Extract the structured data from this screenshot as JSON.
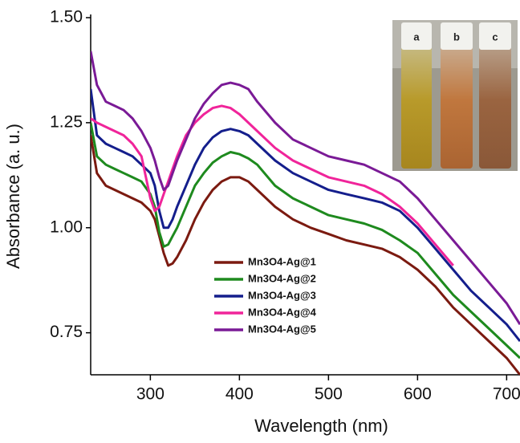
{
  "chart_data": {
    "type": "line",
    "x_label": "Wavelength (nm)",
    "y_label": "Absorbance (a. u.)",
    "xlim": [
      233,
      715
    ],
    "ylim": [
      0.65,
      1.5
    ],
    "xticks": [
      300,
      400,
      500,
      600,
      700
    ],
    "yticks": [
      {
        "value": 0.75,
        "label": "0.75"
      },
      {
        "value": 1,
        "label": "1.00"
      },
      {
        "value": 1.25,
        "label": "1.25"
      },
      {
        "value": 1.5,
        "label": "1.50"
      }
    ],
    "inset_labels": [
      "a",
      "b",
      "c"
    ],
    "x": [
      233,
      240,
      250,
      260,
      270,
      280,
      290,
      300,
      305,
      310,
      315,
      320,
      325,
      330,
      340,
      350,
      360,
      370,
      380,
      390,
      400,
      410,
      420,
      440,
      460,
      480,
      500,
      520,
      540,
      560,
      580,
      600,
      620,
      640,
      660,
      680,
      700,
      715
    ],
    "series": [
      {
        "name": "Mn3O4-Ag@1",
        "color": "#7b1a10",
        "values": [
          1.22,
          1.13,
          1.1,
          1.09,
          1.08,
          1.07,
          1.06,
          1.04,
          1.02,
          0.98,
          0.94,
          0.91,
          0.915,
          0.93,
          0.97,
          1.02,
          1.06,
          1.09,
          1.11,
          1.12,
          1.12,
          1.11,
          1.09,
          1.05,
          1.02,
          1.0,
          0.985,
          0.97,
          0.96,
          0.95,
          0.93,
          0.9,
          0.86,
          0.81,
          0.77,
          0.73,
          0.69,
          0.65
        ]
      },
      {
        "name": "Mn3O4-Ag@2",
        "color": "#1e8a1e",
        "values": [
          1.25,
          1.17,
          1.15,
          1.14,
          1.13,
          1.12,
          1.11,
          1.08,
          1.05,
          0.99,
          0.955,
          0.96,
          0.98,
          1.0,
          1.05,
          1.1,
          1.13,
          1.155,
          1.17,
          1.18,
          1.175,
          1.165,
          1.15,
          1.1,
          1.07,
          1.05,
          1.03,
          1.02,
          1.01,
          0.995,
          0.97,
          0.94,
          0.89,
          0.84,
          0.8,
          0.76,
          0.72,
          0.69
        ]
      },
      {
        "name": "Mn3O4-Ag@3",
        "color": "#141e8c",
        "values": [
          1.33,
          1.22,
          1.2,
          1.19,
          1.18,
          1.17,
          1.15,
          1.13,
          1.1,
          1.04,
          1.0,
          1.0,
          1.02,
          1.05,
          1.1,
          1.15,
          1.19,
          1.215,
          1.23,
          1.235,
          1.23,
          1.22,
          1.2,
          1.16,
          1.13,
          1.11,
          1.09,
          1.08,
          1.07,
          1.06,
          1.04,
          1.0,
          0.95,
          0.9,
          0.85,
          0.81,
          0.77,
          0.73
        ]
      },
      {
        "name": "Mn3O4-Ag@4",
        "color": "#f0249a",
        "values": [
          1.26,
          1.25,
          1.24,
          1.23,
          1.22,
          1.2,
          1.17,
          1.07,
          1.04,
          1.05,
          1.08,
          1.11,
          1.14,
          1.17,
          1.22,
          1.25,
          1.27,
          1.285,
          1.29,
          1.285,
          1.27,
          1.25,
          1.23,
          1.19,
          1.16,
          1.14,
          1.12,
          1.11,
          1.1,
          1.08,
          1.05,
          1.01,
          0.96,
          0.91,
          null,
          null,
          null,
          null
        ]
      },
      {
        "name": "Mn3O4-Ag@5",
        "color": "#7a1a96",
        "values": [
          1.42,
          1.34,
          1.3,
          1.29,
          1.28,
          1.26,
          1.23,
          1.19,
          1.16,
          1.12,
          1.09,
          1.1,
          1.13,
          1.16,
          1.21,
          1.26,
          1.295,
          1.32,
          1.34,
          1.345,
          1.34,
          1.33,
          1.3,
          1.25,
          1.21,
          1.19,
          1.17,
          1.16,
          1.15,
          1.13,
          1.11,
          1.07,
          1.02,
          0.97,
          0.92,
          0.87,
          0.82,
          0.77
        ]
      }
    ]
  }
}
